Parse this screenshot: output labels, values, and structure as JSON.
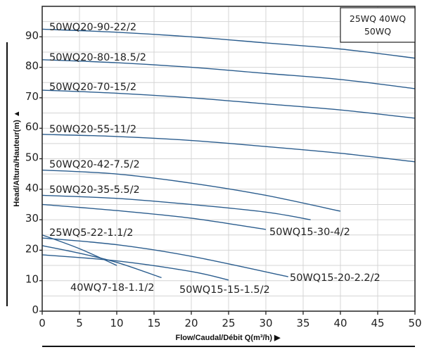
{
  "chart_data": {
    "type": "line",
    "xlabel": "Flow/Caudal/Débit Q(m³/h) ▶",
    "ylabel": "Head/Altura/Hauteur(m) ▲",
    "xlim": [
      0,
      50
    ],
    "ylim": [
      0,
      100
    ],
    "x_ticks": [
      "0",
      "5",
      "10",
      "15",
      "20",
      "25",
      "30",
      "35",
      "40",
      "45",
      "50"
    ],
    "y_ticks": [
      "0",
      "10",
      "20",
      "30",
      "40",
      "50",
      "60",
      "70",
      "80",
      "90"
    ],
    "grid": true,
    "legend_box": {
      "line1": "25WQ 40WQ",
      "line2": "50WQ",
      "placement": "top-right"
    },
    "line_color": "#2b5d8e",
    "series": [
      {
        "name": "50WQ20-90-22/2",
        "x": [
          0,
          10,
          20,
          30,
          40,
          50
        ],
        "y": [
          92.5,
          91.5,
          90,
          88,
          86,
          83
        ]
      },
      {
        "name": "50WQ20-80-18.5/2",
        "x": [
          0,
          10,
          20,
          30,
          40,
          50
        ],
        "y": [
          82.5,
          81.5,
          80,
          78,
          76,
          73
        ]
      },
      {
        "name": "50WQ20-70-15/2",
        "x": [
          0,
          10,
          20,
          30,
          40,
          50
        ],
        "y": [
          72.5,
          71.5,
          70,
          68,
          66,
          63.3
        ]
      },
      {
        "name": "50WQ20-55-11/2",
        "x": [
          0,
          10,
          20,
          30,
          40,
          50
        ],
        "y": [
          58,
          57.3,
          56,
          54,
          51.8,
          49
        ]
      },
      {
        "name": "50WQ20-42-7.5/2",
        "x": [
          0,
          10,
          20,
          30,
          40
        ],
        "y": [
          46.3,
          45,
          42,
          38,
          32.8
        ]
      },
      {
        "name": "50WQ20-35-5.5/2",
        "x": [
          0,
          10,
          20,
          30,
          36
        ],
        "y": [
          38,
          37,
          35,
          32.5,
          30
        ]
      },
      {
        "name": "50WQ15-30-4/2",
        "x": [
          0,
          10,
          20,
          30
        ],
        "y": [
          35,
          33,
          30.5,
          26.8
        ]
      },
      {
        "name": "25WQ5-22-1.1/2",
        "x": [
          0,
          5,
          10
        ],
        "y": [
          25,
          20.5,
          15
        ]
      },
      {
        "name": "50WQ15-20-2.2/2",
        "x": [
          0,
          10,
          20,
          33
        ],
        "y": [
          24,
          21.8,
          18,
          11.3
        ]
      },
      {
        "name": "40WQ7-18-1.1/2",
        "x": [
          0,
          5,
          10,
          16
        ],
        "y": [
          21.5,
          19,
          16,
          11
        ]
      },
      {
        "name": "50WQ15-15-1.5/2",
        "x": [
          0,
          10,
          20,
          25
        ],
        "y": [
          18.5,
          16.5,
          13,
          10.2
        ]
      }
    ]
  }
}
